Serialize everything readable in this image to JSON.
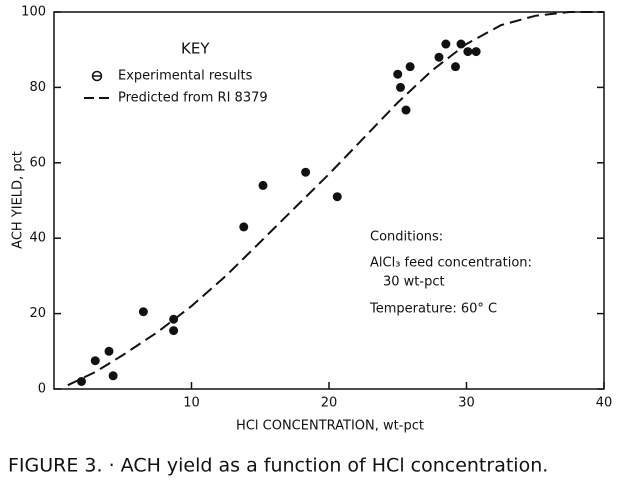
{
  "chart_data": {
    "type": "scatter",
    "caption": "FIGURE 3. · ACH yield as a function of HCl concentration.",
    "x_label": "HCl CONCENTRATION, wt-pct",
    "y_label": "ACH YIELD, pct",
    "key_title": "KEY",
    "annotations": [
      "Conditions:",
      "AlCl₃ feed concentration:",
      "30 wt-pct",
      "Temperature: 60° C"
    ],
    "xlim": [
      0,
      40
    ],
    "ylim": [
      0,
      100
    ],
    "xticks": [
      10,
      20,
      30,
      40
    ],
    "yticks": [
      0,
      20,
      40,
      60,
      80,
      100
    ],
    "series": [
      {
        "name": "Experimental results",
        "type": "scatter",
        "color": "#111",
        "x": [
          2,
          3,
          4,
          4.3,
          6.5,
          8.7,
          8.7,
          13.8,
          15.2,
          18.3,
          20.6,
          25,
          25.2,
          25.6,
          25.9,
          28,
          28.5,
          29.2,
          29.6,
          30.1,
          30.7
        ],
        "values": [
          2,
          7.5,
          10,
          3.5,
          20.5,
          15.5,
          18.5,
          43,
          54,
          57.5,
          51,
          83.5,
          80,
          74,
          85.5,
          88,
          91.5,
          85.5,
          91.5,
          89.5,
          89.5
        ]
      },
      {
        "name": "Predicted from RI 8379",
        "type": "line",
        "color": "#111",
        "x": [
          1,
          3,
          5,
          7.5,
          10,
          12.5,
          15,
          17.5,
          20,
          22.5,
          25,
          27.5,
          30,
          32.5,
          35,
          37.5,
          40
        ],
        "values": [
          1,
          4.5,
          9,
          15,
          22,
          30,
          39,
          48,
          57,
          66.5,
          76,
          84.5,
          91.5,
          96.5,
          99,
          100,
          100
        ]
      }
    ]
  }
}
